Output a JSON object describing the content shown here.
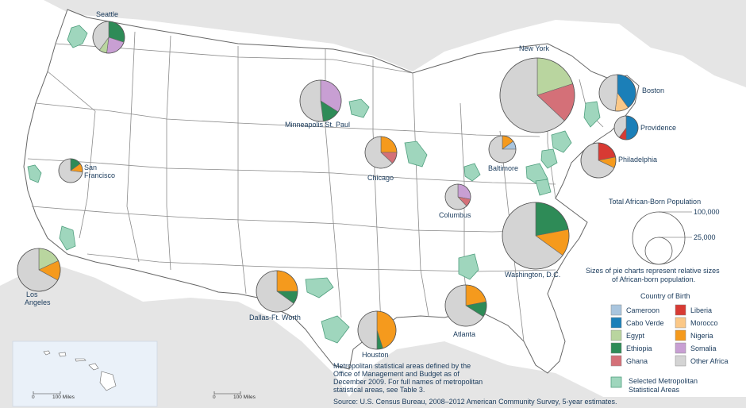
{
  "map": {
    "cities": [
      {
        "name": "Seattle",
        "shares": {
          "Ethiopia": 0.3,
          "Somalia": 0.22,
          "Egypt": 0.08,
          "Other Africa": 0.4
        }
      },
      {
        "name": "New York",
        "shares": {
          "Egypt": 0.2,
          "Ghana": 0.17,
          "Other Africa": 0.63
        }
      },
      {
        "name": "Boston",
        "shares": {
          "Cabo Verde": 0.4,
          "Morocco": 0.12,
          "Other Africa": 0.48
        }
      },
      {
        "name": "Providence",
        "shares": {
          "Cabo Verde": 0.5,
          "Liberia": 0.1,
          "Other Africa": 0.4
        }
      },
      {
        "name": "Minneapolis St. Paul",
        "shares": {
          "Somalia": 0.34,
          "Ethiopia": 0.14,
          "Other Africa": 0.52
        }
      },
      {
        "name": "San Francisco",
        "shares": {
          "Ethiopia": 0.15,
          "Nigeria": 0.12,
          "Other Africa": 0.73
        }
      },
      {
        "name": "Chicago",
        "shares": {
          "Nigeria": 0.25,
          "Ghana": 0.12,
          "Other Africa": 0.63
        }
      },
      {
        "name": "Baltimore",
        "shares": {
          "Nigeria": 0.15,
          "Cameroon": 0.1,
          "Other Africa": 0.75
        }
      },
      {
        "name": "Philadelphia",
        "shares": {
          "Liberia": 0.22,
          "Nigeria": 0.1,
          "Other Africa": 0.68
        }
      },
      {
        "name": "Columbus",
        "shares": {
          "Somalia": 0.28,
          "Ghana": 0.1,
          "Other Africa": 0.62
        }
      },
      {
        "name": "Washington, D.C.",
        "shares": {
          "Ethiopia": 0.22,
          "Nigeria": 0.13,
          "Other Africa": 0.65
        }
      },
      {
        "name": "Los Angeles",
        "shares": {
          "Egypt": 0.18,
          "Nigeria": 0.15,
          "Other Africa": 0.67
        }
      },
      {
        "name": "Dallas-Ft. Worth",
        "shares": {
          "Nigeria": 0.25,
          "Ethiopia": 0.1,
          "Other Africa": 0.65
        }
      },
      {
        "name": "Houston",
        "shares": {
          "Nigeria": 0.45,
          "Ethiopia": 0.05,
          "Other Africa": 0.5
        }
      },
      {
        "name": "Atlanta",
        "shares": {
          "Nigeria": 0.22,
          "Ethiopia": 0.12,
          "Other Africa": 0.66
        }
      }
    ]
  },
  "size_legend": {
    "title": "Total African-Born Population",
    "large_label": "100,000",
    "small_label": "25,000",
    "note_line1": "Sizes of pie charts represent relative sizes",
    "note_line2": "of African-born population."
  },
  "country_legend": {
    "title": "Country of Birth",
    "items": [
      {
        "label": "Cameroon",
        "color": "#a9c5de"
      },
      {
        "label": "Liberia",
        "color": "#d83a33"
      },
      {
        "label": "Cabo Verde",
        "color": "#1b7fb8"
      },
      {
        "label": "Morocco",
        "color": "#fbc887"
      },
      {
        "label": "Egypt",
        "color": "#b9d59f"
      },
      {
        "label": "Nigeria",
        "color": "#f59a1d"
      },
      {
        "label": "Ethiopia",
        "color": "#2e8b57"
      },
      {
        "label": "Somalia",
        "color": "#c89fd3"
      },
      {
        "label": "Ghana",
        "color": "#d47078"
      },
      {
        "label": "Other Africa",
        "color": "#d4d4d4"
      }
    ],
    "msa_label_line1": "Selected Metropolitan",
    "msa_label_line2": "Statistical Areas"
  },
  "notes": {
    "line1": "Metropolitan statistical areas defined by the",
    "line2": "Office of Management and Budget as of",
    "line3": "December 2009. For full names of metropolitan",
    "line4": "statistical areas, see Table 3."
  },
  "source": "Source: U.S. Census Bureau, 2008–2012 American Community Survey, 5-year estimates.",
  "scale": {
    "zero": "0",
    "miles": "100 Miles"
  },
  "colors": {
    "msa_fill": "#9fd6bd",
    "msa_stroke": "#4f9f7e",
    "land": "#ffffff",
    "water": "#e8e8e8",
    "state_stroke": "#7a7a7a",
    "text": "#1a3b5c",
    "inset_bg": "#eaf1f9"
  }
}
